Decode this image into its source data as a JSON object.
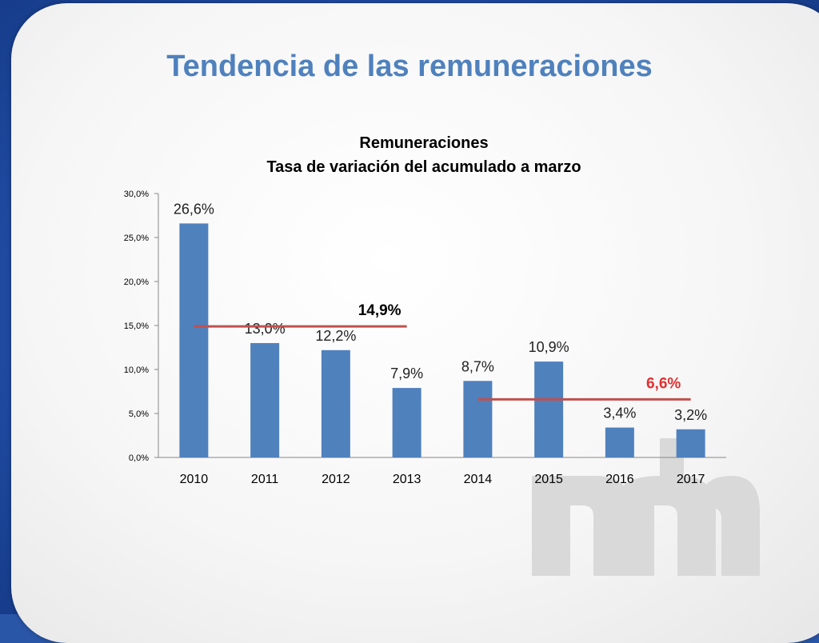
{
  "slide": {
    "title": "Tendencia de las remuneraciones"
  },
  "chart_data": {
    "type": "bar",
    "title": "Remuneraciones",
    "subtitle": "Tasa de variación del acumulado a marzo",
    "categories": [
      "2010",
      "2011",
      "2012",
      "2013",
      "2014",
      "2015",
      "2016",
      "2017"
    ],
    "values": [
      26.6,
      13.0,
      12.2,
      7.9,
      8.7,
      10.9,
      3.4,
      3.2
    ],
    "value_labels": [
      "26,6%",
      "13,0%",
      "12,2%",
      "7,9%",
      "8,7%",
      "10,9%",
      "3,4%",
      "3,2%"
    ],
    "ylim": [
      0,
      30
    ],
    "yticks": [
      0,
      5,
      10,
      15,
      20,
      25,
      30
    ],
    "ytick_labels": [
      "0,0%",
      "5,0%",
      "10,0%",
      "15,0%",
      "20,0%",
      "25,0%",
      "30,0%"
    ],
    "grid": false,
    "bar_color": "#4f81bd",
    "average_lines": [
      {
        "label": "14,9%",
        "value": 14.9,
        "from": "2010",
        "to": "2013",
        "color": "#c0504d",
        "label_color": "#000000"
      },
      {
        "label": "6,6%",
        "value": 6.6,
        "from": "2014",
        "to": "2017",
        "color": "#c0504d",
        "label_color": "#e03030"
      }
    ]
  }
}
